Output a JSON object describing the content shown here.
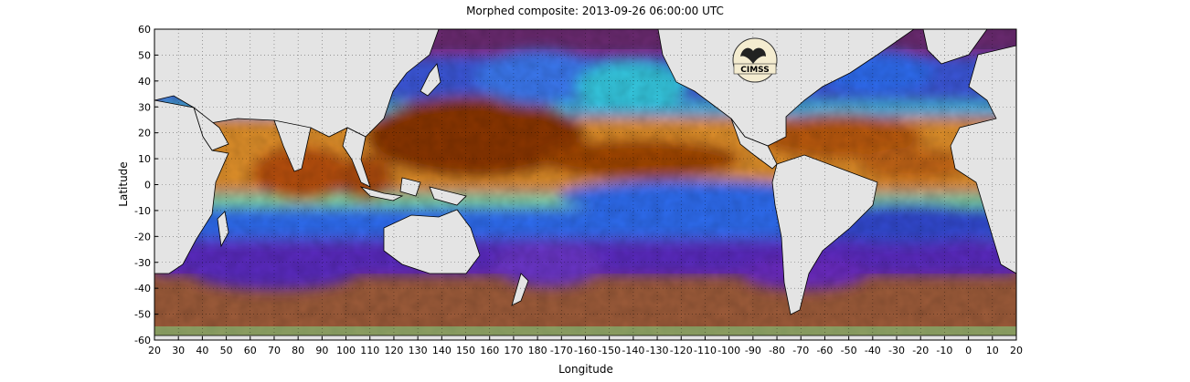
{
  "title": "Morphed composite: 2013-09-26 06:00:00 UTC",
  "xlabel": "Longitude",
  "ylabel": "Latitude",
  "x_ticks": [
    "20",
    "30",
    "40",
    "50",
    "60",
    "70",
    "80",
    "90",
    "100",
    "110",
    "120",
    "130",
    "140",
    "150",
    "160",
    "170",
    "180",
    "-170",
    "-160",
    "-150",
    "-140",
    "-130",
    "-120",
    "-110",
    "-100",
    "-90",
    "-80",
    "-70",
    "-60",
    "-50",
    "-40",
    "-30",
    "-20",
    "-10",
    "0",
    "10",
    "20"
  ],
  "y_ticks": [
    "60",
    "50",
    "40",
    "30",
    "20",
    "10",
    "0",
    "-10",
    "-20",
    "-30",
    "-40",
    "-50",
    "-60"
  ],
  "logo_text": "CIMSS",
  "colors": {
    "land": "#e4e4e4",
    "very_moist": "#8a3600",
    "moist": "#d26a10",
    "moist_light": "#f0a040",
    "mid_green": "#7de08a",
    "mid_cyan": "#34c8e0",
    "dry_blue": "#2e6cf0",
    "dryer_indigo": "#5a2ac0",
    "dry_purple": "#8a3090",
    "polar_brown": "#9e5c3a"
  }
}
